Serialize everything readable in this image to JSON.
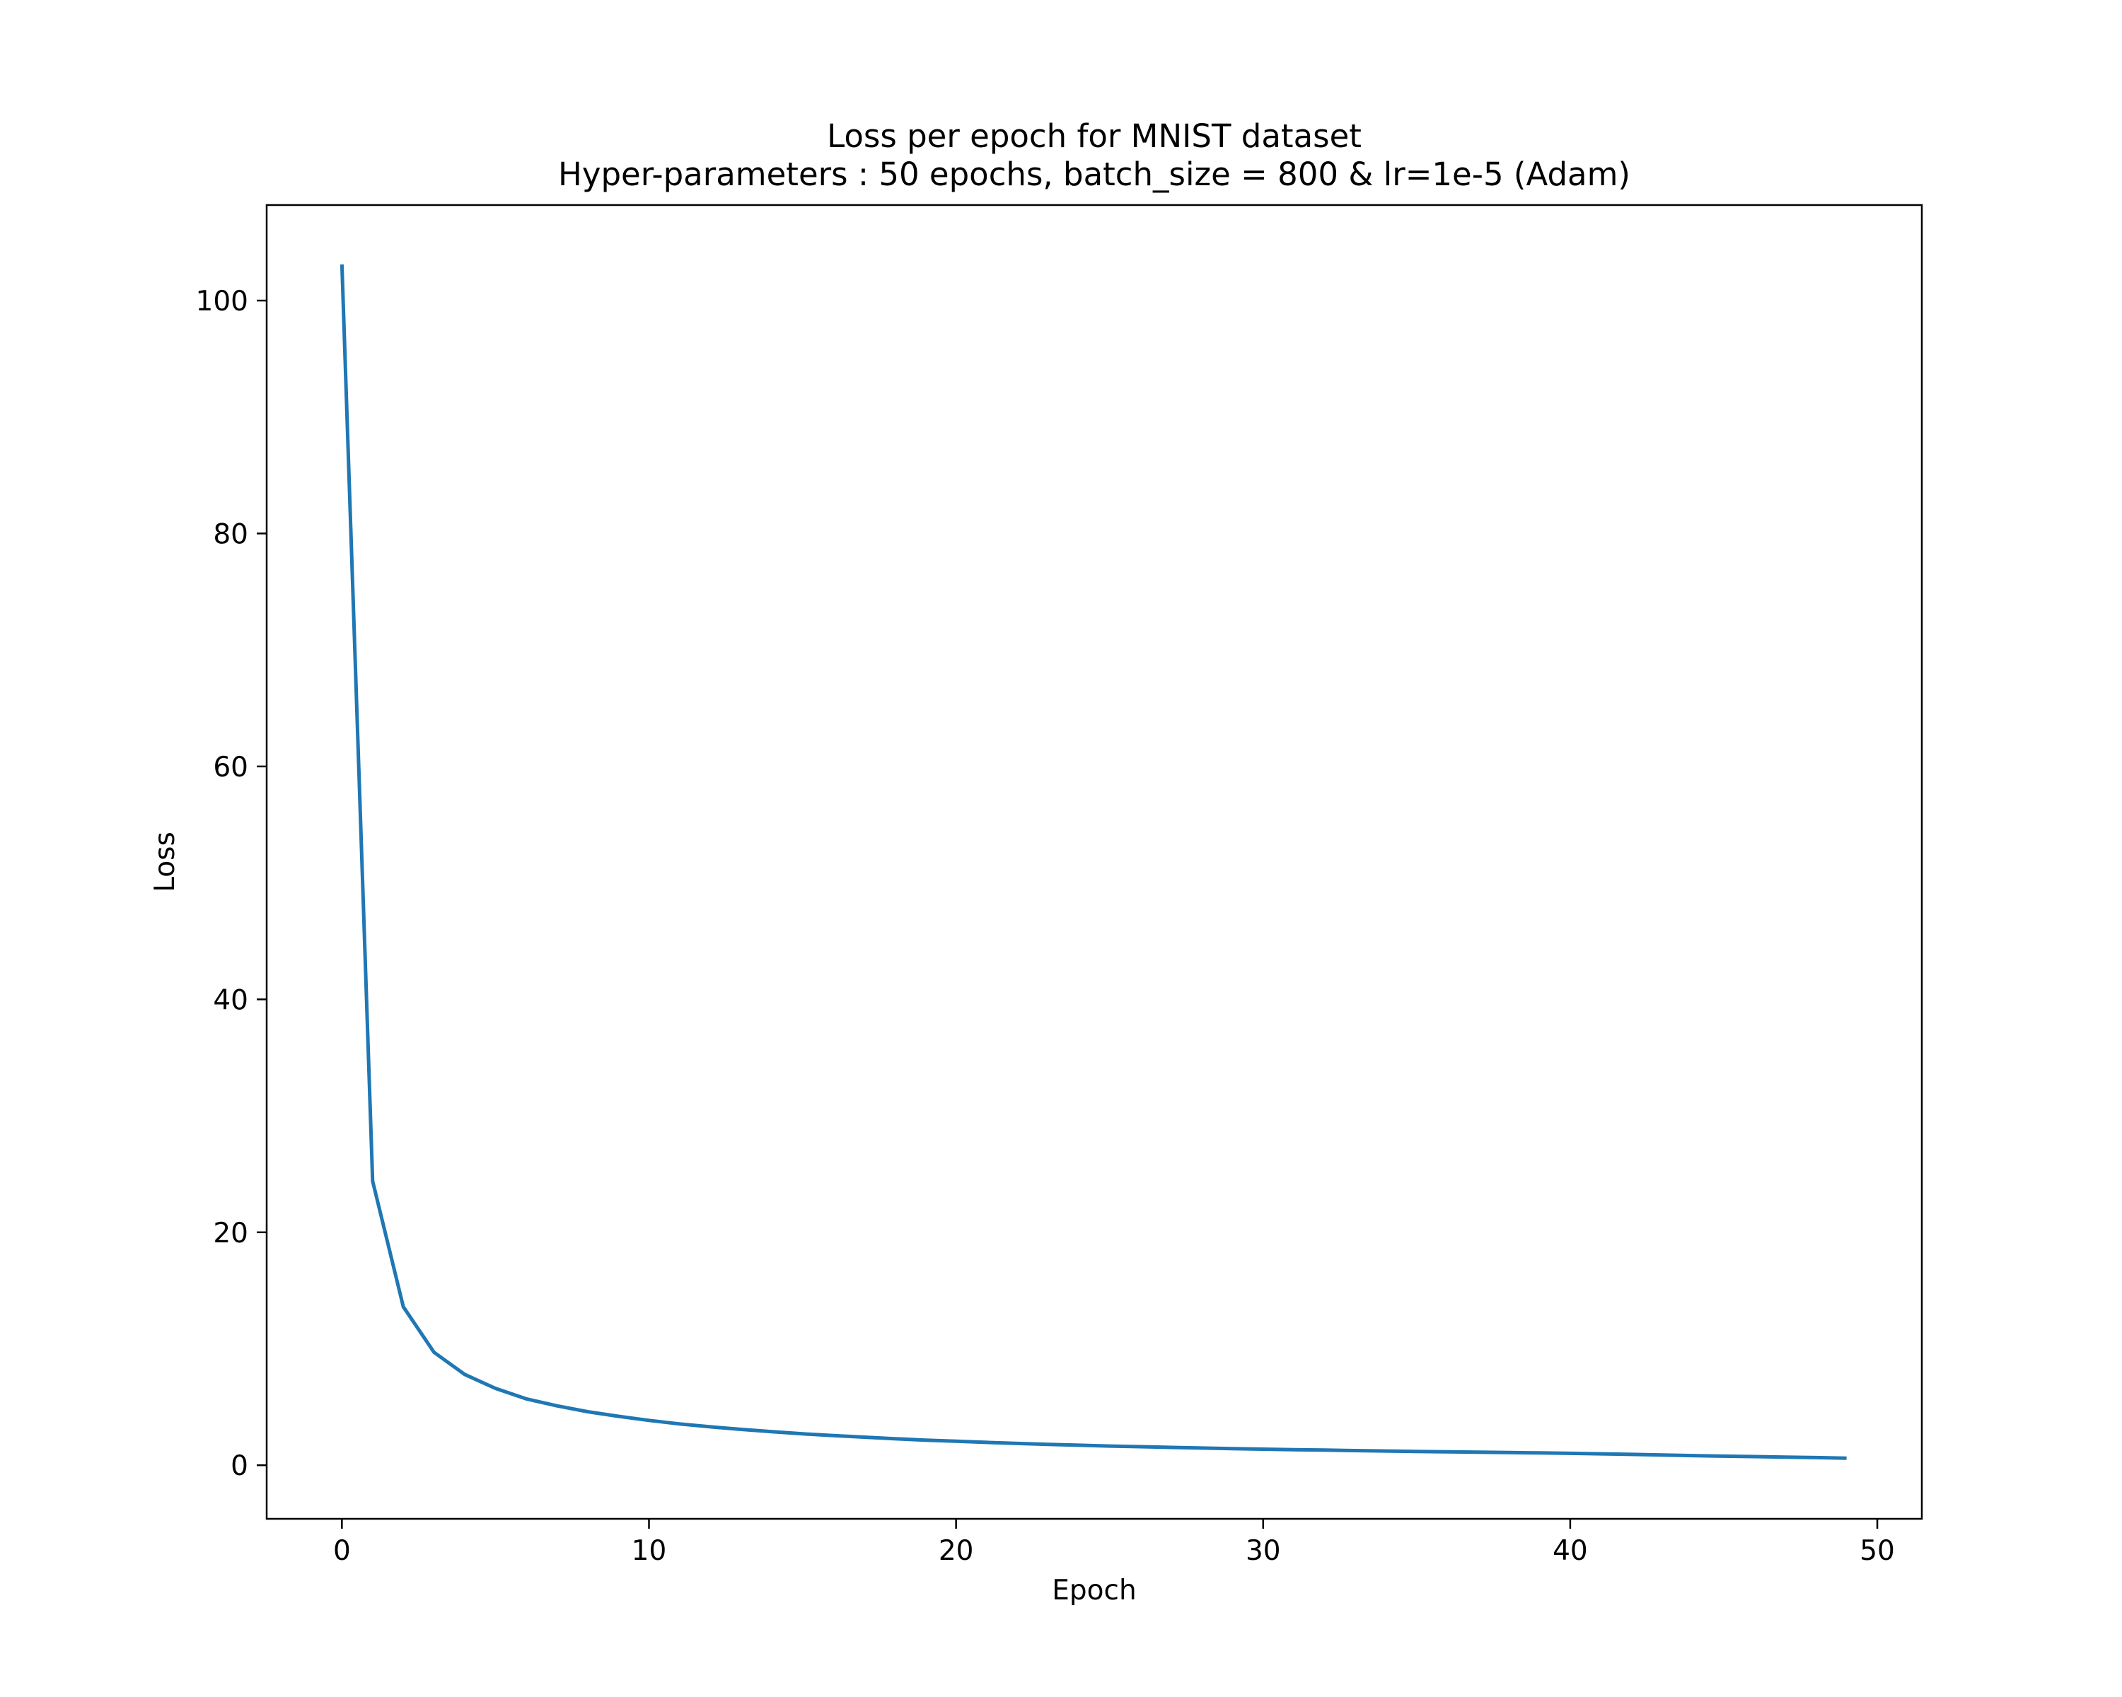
{
  "chart_data": {
    "type": "line",
    "title": "Loss per epoch for MNIST dataset",
    "subtitle": "Hyper-parameters : 50 epochs, batch_size = 800 & lr=1e-5 (Adam)",
    "xlabel": "Epoch",
    "ylabel": "Loss",
    "xlim": [
      -2.45,
      51.45
    ],
    "ylim": [
      -4.6,
      108.2
    ],
    "xticks": [
      0,
      10,
      20,
      30,
      40,
      50
    ],
    "yticks": [
      0,
      20,
      40,
      60,
      80,
      100
    ],
    "grid": false,
    "series": [
      {
        "color": "#1f77b4",
        "x": [
          0,
          1,
          2,
          3,
          4,
          5,
          6,
          7,
          8,
          9,
          10,
          11,
          12,
          13,
          14,
          15,
          16,
          17,
          18,
          19,
          20,
          21,
          22,
          23,
          24,
          25,
          26,
          27,
          28,
          29,
          30,
          31,
          32,
          33,
          34,
          35,
          36,
          37,
          38,
          39,
          40,
          41,
          42,
          43,
          44,
          45,
          46,
          47,
          48,
          49
        ],
        "y": [
          103.1,
          24.4,
          13.6,
          9.7,
          7.8,
          6.6,
          5.7,
          5.1,
          4.6,
          4.2,
          3.85,
          3.55,
          3.3,
          3.08,
          2.88,
          2.7,
          2.55,
          2.41,
          2.28,
          2.16,
          2.06,
          1.96,
          1.87,
          1.79,
          1.72,
          1.65,
          1.59,
          1.53,
          1.48,
          1.43,
          1.38,
          1.34,
          1.3,
          1.26,
          1.22,
          1.18,
          1.15,
          1.12,
          1.09,
          1.06,
          1.02,
          0.98,
          0.93,
          0.88,
          0.83,
          0.78,
          0.74,
          0.7,
          0.66,
          0.6
        ]
      }
    ]
  }
}
